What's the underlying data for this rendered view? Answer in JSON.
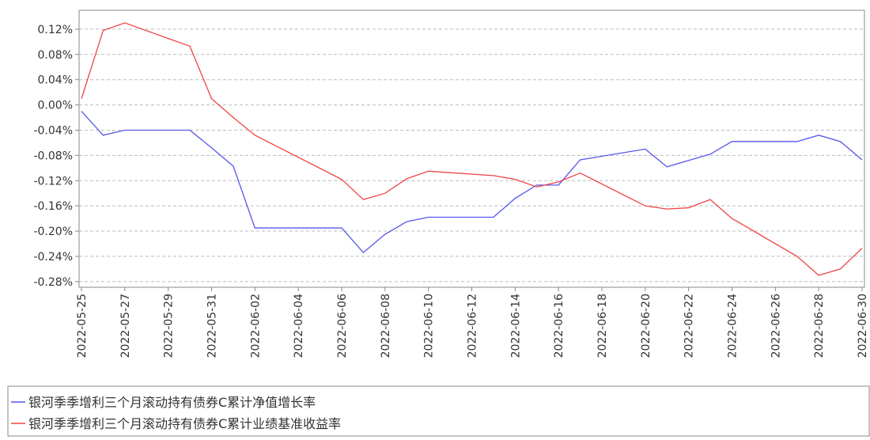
{
  "chart_data": {
    "type": "line",
    "x": [
      "2022-05-25",
      "2022-05-26",
      "2022-05-27",
      "2022-05-30",
      "2022-05-31",
      "2022-06-01",
      "2022-06-02",
      "2022-06-06",
      "2022-06-07",
      "2022-06-08",
      "2022-06-09",
      "2022-06-10",
      "2022-06-13",
      "2022-06-14",
      "2022-06-15",
      "2022-06-16",
      "2022-06-17",
      "2022-06-20",
      "2022-06-21",
      "2022-06-22",
      "2022-06-23",
      "2022-06-24",
      "2022-06-27",
      "2022-06-28",
      "2022-06-29",
      "2022-06-30"
    ],
    "series": [
      {
        "name": "银河季季增利三个月滚动持有债券C累计净值增长率",
        "color": "#5555ee",
        "values": [
          -0.01,
          -0.048,
          -0.04,
          -0.04,
          -0.068,
          -0.097,
          -0.195,
          -0.195,
          -0.234,
          -0.205,
          -0.185,
          -0.178,
          -0.178,
          -0.148,
          -0.127,
          -0.127,
          -0.087,
          -0.07,
          -0.098,
          -0.088,
          -0.078,
          -0.058,
          -0.058,
          -0.048,
          -0.058,
          -0.087
        ]
      },
      {
        "name": "银河季季增利三个月滚动持有债券C累计业绩基准收益率",
        "color": "#ee4444",
        "values": [
          0.01,
          0.118,
          0.13,
          0.093,
          0.01,
          -0.02,
          -0.048,
          -0.118,
          -0.15,
          -0.14,
          -0.117,
          -0.105,
          -0.112,
          -0.118,
          -0.13,
          -0.122,
          -0.108,
          -0.16,
          -0.165,
          -0.163,
          -0.15,
          -0.18,
          -0.24,
          -0.27,
          -0.26,
          -0.227
        ]
      }
    ],
    "xlim": [
      "2022-05-25",
      "2022-06-30"
    ],
    "xticks": [
      "2022-05-25",
      "2022-05-27",
      "2022-05-29",
      "2022-05-31",
      "2022-06-02",
      "2022-06-04",
      "2022-06-06",
      "2022-06-08",
      "2022-06-10",
      "2022-06-12",
      "2022-06-14",
      "2022-06-16",
      "2022-06-18",
      "2022-06-20",
      "2022-06-22",
      "2022-06-24",
      "2022-06-26",
      "2022-06-28",
      "2022-06-30"
    ],
    "ylim": [
      -0.289,
      0.15
    ],
    "yticks": [
      {
        "value": 0.12,
        "label": "0.12%"
      },
      {
        "value": 0.08,
        "label": "0.08%"
      },
      {
        "value": 0.04,
        "label": "0.04%"
      },
      {
        "value": 0,
        "label": "0.00%"
      },
      {
        "value": -0.04,
        "label": "-0.04%"
      },
      {
        "value": -0.08,
        "label": "-0.08%"
      },
      {
        "value": -0.12,
        "label": "-0.12%"
      },
      {
        "value": -0.16,
        "label": "-0.16%"
      },
      {
        "value": -0.2,
        "label": "-0.20%"
      },
      {
        "value": -0.24,
        "label": "-0.24%"
      },
      {
        "value": -0.28,
        "label": "-0.28%"
      }
    ],
    "grid": true,
    "legend": "bottom"
  }
}
